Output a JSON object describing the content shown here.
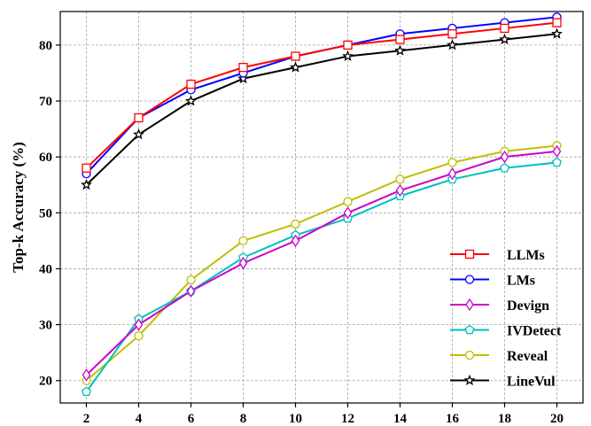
{
  "chart_data": {
    "type": "line",
    "title": "",
    "xlabel": "",
    "ylabel": "Top-k Accuracy (%)",
    "x": [
      2,
      4,
      6,
      8,
      10,
      12,
      14,
      16,
      18,
      20
    ],
    "xlim": [
      1,
      21
    ],
    "ylim": [
      16,
      86
    ],
    "xticks": [
      "2",
      "4",
      "6",
      "8",
      "10",
      "12",
      "14",
      "16",
      "18",
      "20"
    ],
    "yticks": [
      "20",
      "30",
      "40",
      "50",
      "60",
      "70",
      "80"
    ],
    "grid": true,
    "legend_position": "bottom-right",
    "series": [
      {
        "name": "LLMs",
        "color": "#ff0000",
        "marker": "square",
        "values": [
          58,
          67,
          73,
          76,
          78,
          80,
          81,
          82,
          83,
          84
        ]
      },
      {
        "name": "LMs",
        "color": "#0000ff",
        "marker": "circle",
        "values": [
          57,
          67,
          72,
          75,
          78,
          80,
          82,
          83,
          84,
          85
        ]
      },
      {
        "name": "Devign",
        "color": "#cc00cc",
        "marker": "diamond",
        "values": [
          21,
          30,
          36,
          41,
          45,
          50,
          54,
          57,
          60,
          61
        ]
      },
      {
        "name": "IVDetect",
        "color": "#00bfbf",
        "marker": "pentagon",
        "values": [
          18,
          31,
          36,
          42,
          46,
          49,
          53,
          56,
          58,
          59
        ]
      },
      {
        "name": "Reveal",
        "color": "#bfbf00",
        "marker": "circle",
        "values": [
          20,
          28,
          38,
          45,
          48,
          52,
          56,
          59,
          61,
          62
        ]
      },
      {
        "name": "LineVul",
        "color": "#000000",
        "marker": "star",
        "values": [
          55,
          64,
          70,
          74,
          76,
          78,
          79,
          80,
          81,
          82
        ]
      }
    ]
  }
}
